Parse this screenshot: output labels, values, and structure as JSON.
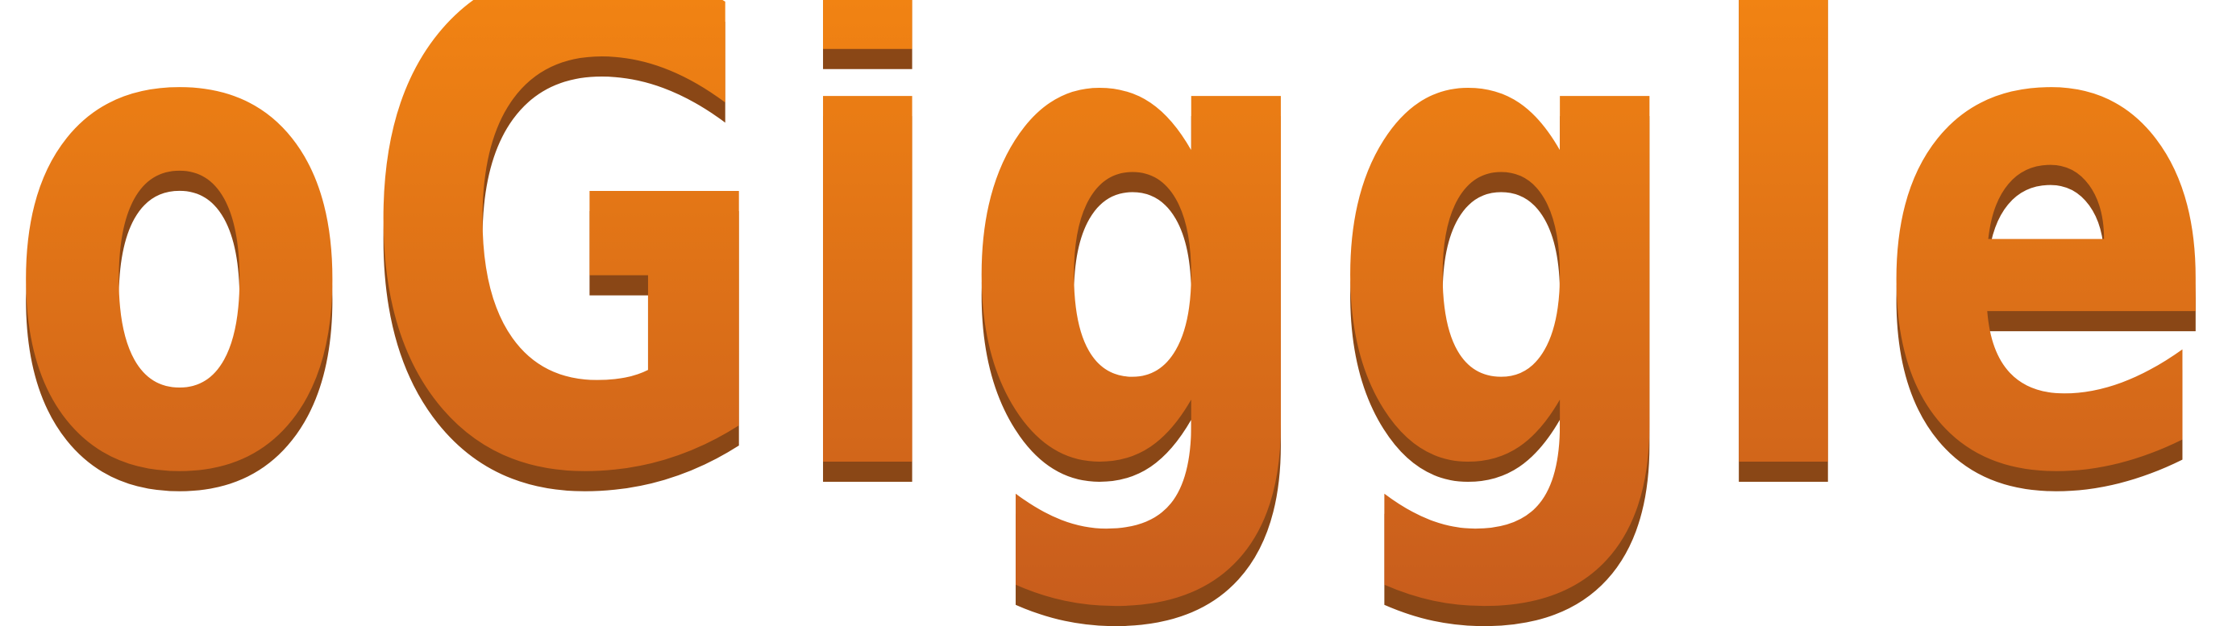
{
  "logo": {
    "text": "oGiggle",
    "colors": {
      "gradient_top": "#fc8d10",
      "gradient_bottom": "#c75c1d",
      "shadow": "#8a4716"
    }
  }
}
